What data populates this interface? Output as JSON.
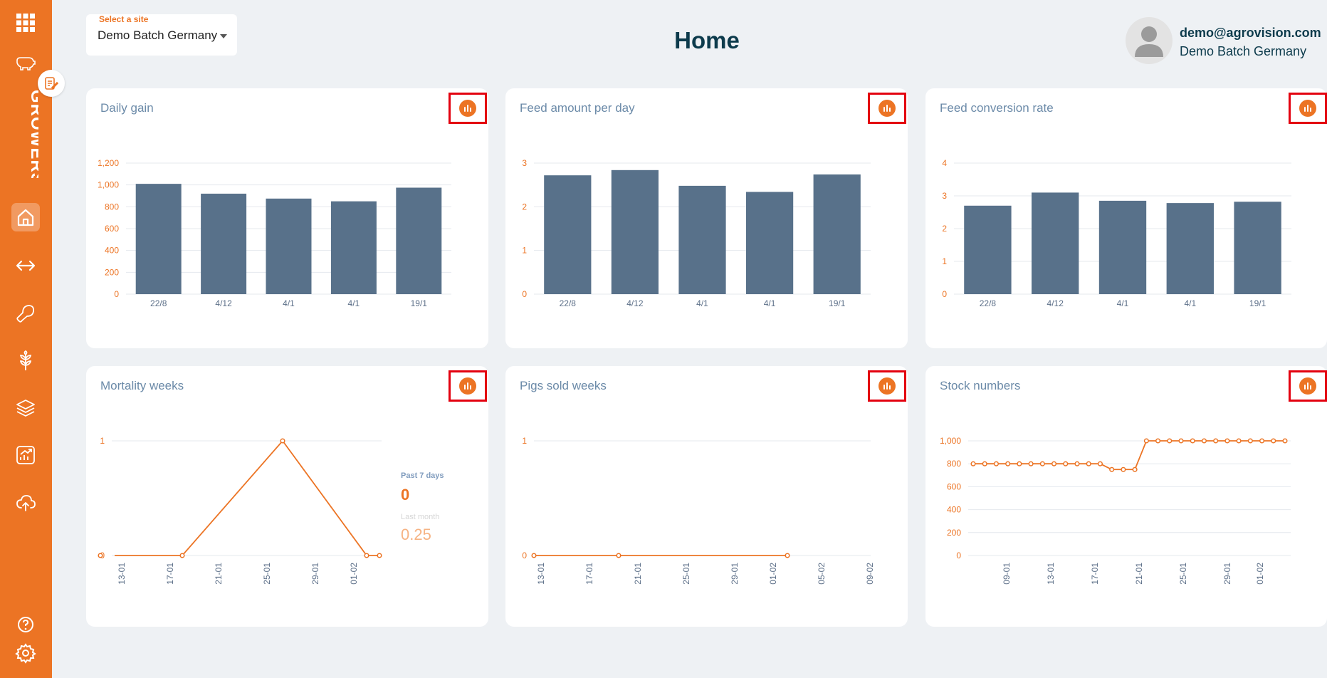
{
  "sidebar": {
    "brand_text": "GROWERS",
    "icons": [
      "apps-grid-icon",
      "pig-icon",
      "home-icon",
      "transfer-icon",
      "meat-icon",
      "grain-icon",
      "layers-icon",
      "analytics-icon",
      "upload-cloud-icon",
      "help-icon",
      "settings-icon"
    ],
    "accent": "#ec7424"
  },
  "header": {
    "site_label": "Select a site",
    "site_value": "Demo Batch Germany",
    "title": "Home",
    "user_email": "demo@agrovision.com",
    "user_site": "Demo Batch Germany"
  },
  "cards": {
    "daily_gain": {
      "title": "Daily gain"
    },
    "feed_amount": {
      "title": "Feed amount per day"
    },
    "fcr": {
      "title": "Feed conversion rate"
    },
    "mortality": {
      "title": "Mortality weeks",
      "past_label": "Past 7 days",
      "past_value": "0",
      "last_month_label": "Last month",
      "last_month_value": "0.25"
    },
    "pigs_sold": {
      "title": "Pigs sold weeks"
    },
    "stock": {
      "title": "Stock numbers"
    }
  },
  "chart_data": [
    {
      "type": "bar",
      "id": "daily_gain",
      "title": "Daily gain",
      "categories": [
        "22/8",
        "4/12",
        "4/1",
        "4/1",
        "19/1"
      ],
      "values": [
        1010,
        920,
        875,
        850,
        975
      ],
      "ylim": [
        0,
        1200
      ],
      "yticks": [
        0,
        200,
        400,
        600,
        800,
        1000,
        1200
      ],
      "ytick_labels": [
        "0",
        "200",
        "400",
        "600",
        "800",
        "1,000",
        "1,200"
      ]
    },
    {
      "type": "bar",
      "id": "feed_amount",
      "title": "Feed amount per day",
      "categories": [
        "22/8",
        "4/12",
        "4/1",
        "4/1",
        "19/1"
      ],
      "values": [
        2.72,
        2.84,
        2.48,
        2.34,
        2.74
      ],
      "ylim": [
        0,
        3
      ],
      "yticks": [
        0,
        1,
        2,
        3
      ],
      "ytick_labels": [
        "0",
        "1",
        "2",
        "3"
      ]
    },
    {
      "type": "bar",
      "id": "fcr",
      "title": "Feed conversion rate",
      "categories": [
        "22/8",
        "4/12",
        "4/1",
        "4/1",
        "19/1"
      ],
      "values": [
        2.7,
        3.1,
        2.85,
        2.78,
        2.82
      ],
      "ylim": [
        0,
        4
      ],
      "yticks": [
        0,
        1,
        2,
        3,
        4
      ],
      "ytick_labels": [
        "0",
        "1",
        "2",
        "3",
        "4"
      ]
    },
    {
      "type": "line",
      "id": "mortality",
      "title": "Mortality weeks",
      "x_labels": [
        "13-01",
        "17-01",
        "21-01",
        "25-01",
        "29-01",
        "01-02"
      ],
      "values": [
        0,
        0,
        1,
        0,
        0
      ],
      "ylim": [
        0,
        1
      ],
      "yticks": [
        0,
        1
      ],
      "ytick_labels": [
        "0",
        "1"
      ]
    },
    {
      "type": "line",
      "id": "pigs_sold",
      "title": "Pigs sold weeks",
      "x_labels": [
        "13-01",
        "17-01",
        "21-01",
        "25-01",
        "29-01",
        "01-02",
        "05-02",
        "09-02"
      ],
      "values": [
        0,
        0,
        0
      ],
      "ylim": [
        0,
        1
      ],
      "yticks": [
        0,
        1
      ],
      "ytick_labels": [
        "0",
        "1"
      ]
    },
    {
      "type": "line",
      "id": "stock",
      "title": "Stock numbers",
      "x_labels": [
        "09-01",
        "13-01",
        "17-01",
        "21-01",
        "25-01",
        "29-01",
        "01-02"
      ],
      "values": [
        800,
        800,
        800,
        800,
        800,
        800,
        800,
        800,
        800,
        800,
        800,
        800,
        750,
        750,
        750,
        1000,
        1000,
        1000,
        1000,
        1000,
        1000,
        1000,
        1000,
        1000,
        1000,
        1000,
        1000,
        1000
      ],
      "ylim": [
        0,
        1000
      ],
      "yticks": [
        0,
        200,
        400,
        600,
        800,
        1000
      ],
      "ytick_labels": [
        "0",
        "200",
        "400",
        "600",
        "800",
        "1,000"
      ]
    }
  ]
}
